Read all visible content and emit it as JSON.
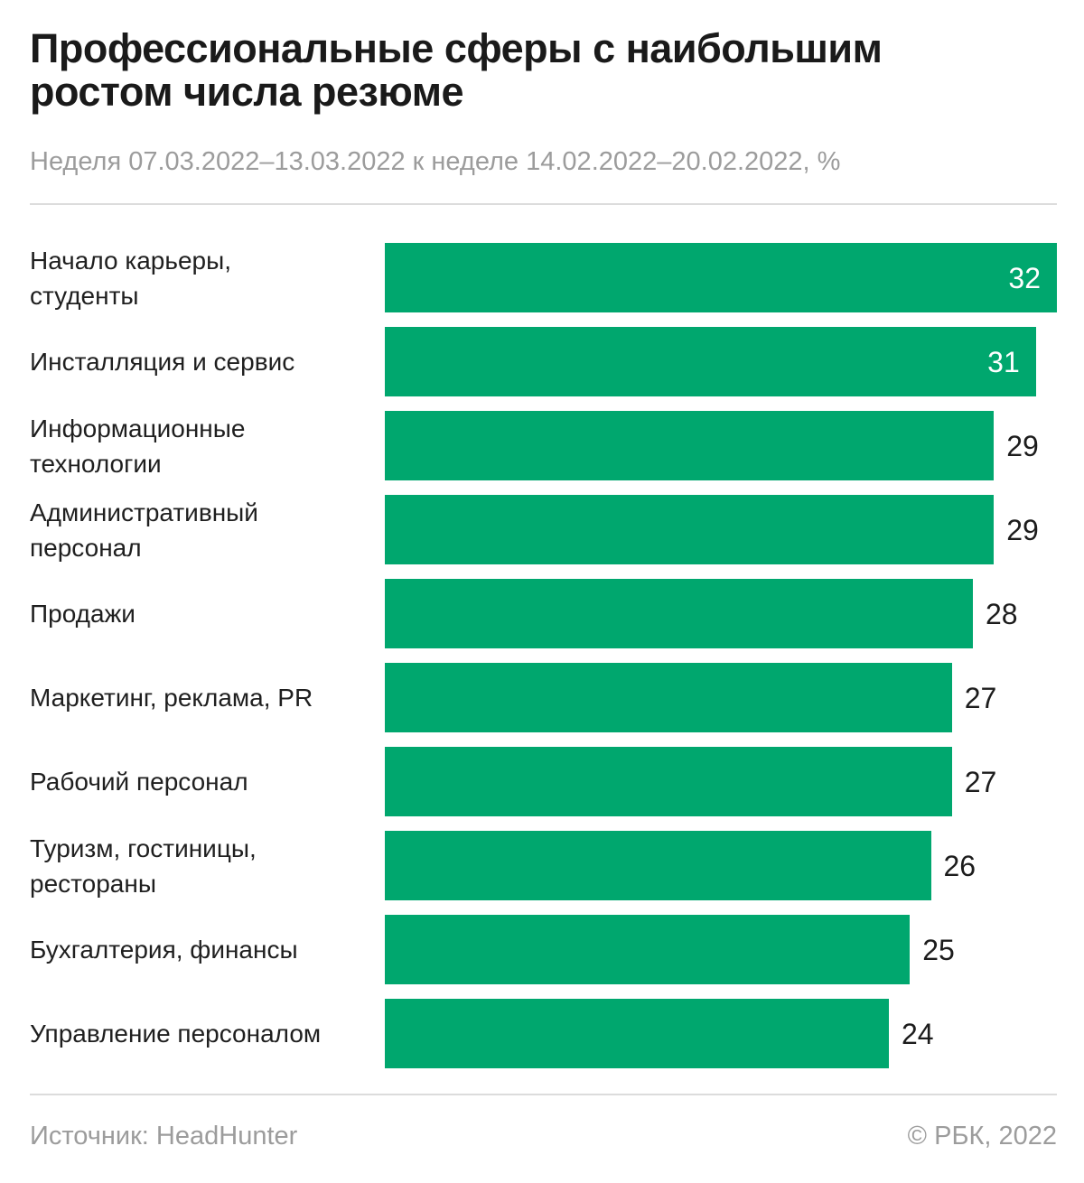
{
  "header": {
    "title": "Профессиональные сферы с наибольшим\nростом числа резюме",
    "subtitle": "Неделя 07.03.2022–13.03.2022 к неделе 14.02.2022–20.02.2022, %"
  },
  "footer": {
    "source": "Источник: HeadHunter",
    "copyright": "© РБК, 2022"
  },
  "colors": {
    "bar": "#00a76e",
    "text": "#1a1a1a",
    "muted": "#9c9c9c",
    "divider": "#dcdcdc",
    "value_inside": "#ffffff"
  },
  "chart_data": {
    "type": "bar",
    "orientation": "horizontal",
    "title": "Профессиональные сферы с наибольшим ростом числа резюме",
    "subtitle": "Неделя 07.03.2022–13.03.2022 к неделе 14.02.2022–20.02.2022, %",
    "unit": "%",
    "categories": [
      "Начало карьеры,\nстуденты",
      "Инсталляция и сервис",
      "Информационные\nтехнологии",
      "Административный\nперсонал",
      "Продажи",
      "Маркетинг, реклама, PR",
      "Рабочий персонал",
      "Туризм, гостиницы,\nрестораны",
      "Бухгалтерия, финансы",
      "Управление персоналом"
    ],
    "values": [
      32,
      31,
      29,
      29,
      28,
      27,
      27,
      26,
      25,
      24
    ],
    "xlim": [
      0,
      32
    ],
    "grid": false,
    "legend": false,
    "value_labels": "end-of-bar, inside bar when bar nearly full width"
  }
}
